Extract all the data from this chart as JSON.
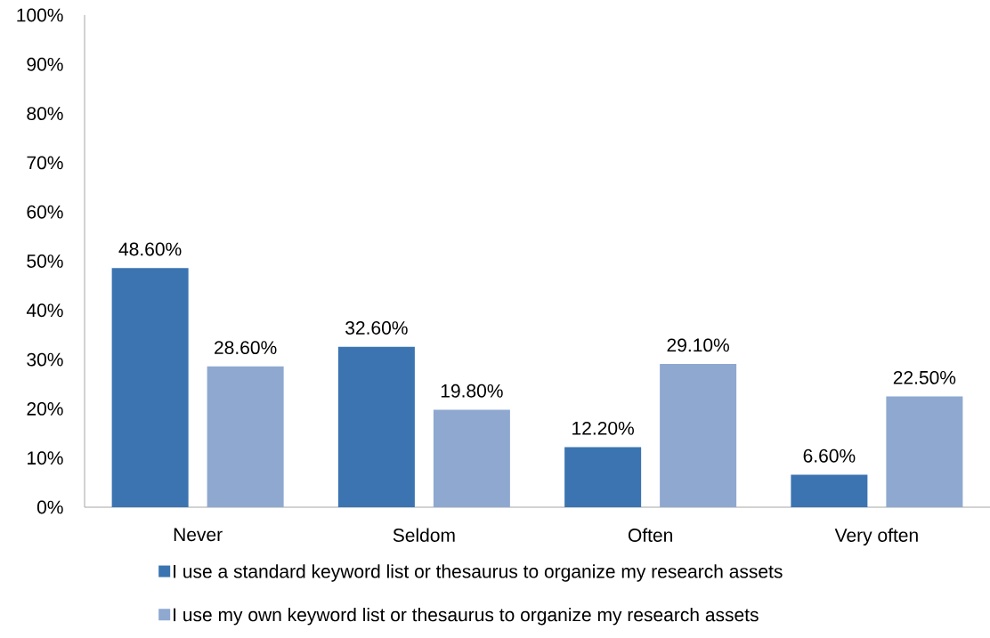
{
  "chart_data": {
    "type": "bar",
    "categories": [
      "Never",
      "Seldom",
      "Often",
      "Very often"
    ],
    "series": [
      {
        "name": "I use a standard keyword list or thesaurus to organize my research assets",
        "color": "#3b74b1",
        "values": [
          48.6,
          32.6,
          12.2,
          6.6
        ],
        "value_labels": [
          "48.60%",
          "32.60%",
          "12.20%",
          "6.60%"
        ]
      },
      {
        "name": "I use my own keyword list or thesaurus to organize my research assets",
        "color": "#8ea8d0",
        "values": [
          28.6,
          19.8,
          29.1,
          22.5
        ],
        "value_labels": [
          "28.60%",
          "19.80%",
          "29.10%",
          "22.50%"
        ]
      }
    ],
    "ylim": [
      0,
      100
    ],
    "yticks": [
      {
        "value": 0,
        "label": "0%"
      },
      {
        "value": 10,
        "label": "10%"
      },
      {
        "value": 20,
        "label": "20%"
      },
      {
        "value": 30,
        "label": "30%"
      },
      {
        "value": 40,
        "label": "40%"
      },
      {
        "value": 50,
        "label": "50%"
      },
      {
        "value": 60,
        "label": "60%"
      },
      {
        "value": 70,
        "label": "70%"
      },
      {
        "value": 80,
        "label": "80%"
      },
      {
        "value": 90,
        "label": "90%"
      },
      {
        "value": 100,
        "label": "100%"
      }
    ],
    "legend": "bottom"
  }
}
